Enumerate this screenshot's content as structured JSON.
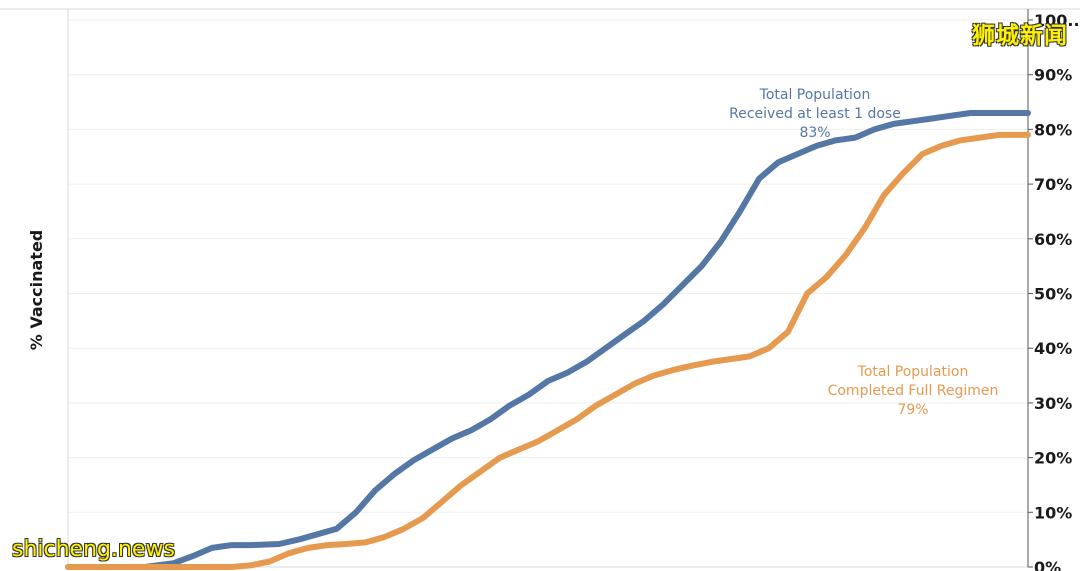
{
  "chart_data": {
    "type": "line",
    "xlabel": "",
    "ylabel": "% Vaccinated",
    "ylim": [
      0,
      100
    ],
    "yticks": [
      "0%",
      "10%",
      "20%",
      "30%",
      "40%",
      "50%",
      "60%",
      "70%",
      "80%",
      "90%",
      "100..."
    ],
    "y_axis_side": "right",
    "grid": true,
    "x_index_range": [
      0,
      100
    ],
    "series": [
      {
        "name": "Total Population Received at least 1 dose",
        "color": "#5577a5",
        "x": [
          0,
          8,
          11,
          13,
          15,
          17,
          19,
          22,
          24,
          26,
          28,
          30,
          32,
          34,
          36,
          38,
          40,
          42,
          44,
          46,
          48,
          50,
          52,
          54,
          56,
          58,
          60,
          62,
          64,
          66,
          68,
          70,
          72,
          74,
          76,
          78,
          80,
          82,
          84,
          86,
          88,
          90,
          92,
          94,
          96,
          98,
          100
        ],
        "values": [
          0,
          0,
          0.7,
          2,
          3.5,
          4,
          4,
          4.2,
          5,
          6,
          7,
          10,
          14,
          17,
          19.5,
          21.5,
          23.5,
          25,
          27,
          29.5,
          31.5,
          34,
          35.5,
          37.5,
          40,
          42.5,
          45,
          48,
          51.5,
          55,
          59.5,
          65,
          71,
          74,
          75.5,
          77,
          78,
          78.5,
          80,
          81,
          81.5,
          82,
          82.5,
          83,
          83,
          83,
          83
        ]
      },
      {
        "name": "Total Population Completed Full Regimen",
        "color": "#e69a4f",
        "x": [
          0,
          13,
          17,
          19,
          21,
          23,
          25,
          27,
          29,
          31,
          33,
          35,
          37,
          39,
          41,
          43,
          45,
          47,
          49,
          51,
          53,
          55,
          57,
          59,
          61,
          63,
          65,
          67,
          69,
          71,
          73,
          75,
          77,
          79,
          81,
          83,
          85,
          87,
          89,
          91,
          93,
          95,
          97,
          99,
          100
        ],
        "values": [
          0,
          0,
          0,
          0.3,
          1,
          2.5,
          3.5,
          4,
          4.2,
          4.5,
          5.5,
          7,
          9,
          12,
          15,
          17.5,
          20,
          21.5,
          23,
          25,
          27,
          29.5,
          31.5,
          33.5,
          35,
          36,
          36.8,
          37.5,
          38,
          38.5,
          40,
          43,
          50,
          53,
          57,
          62,
          68,
          72,
          75.5,
          77,
          78,
          78.5,
          79,
          79,
          79
        ]
      }
    ],
    "annotations": [
      {
        "series": 0,
        "lines": [
          "Total Population",
          "Received at least 1 dose",
          "83%"
        ]
      },
      {
        "series": 1,
        "lines": [
          "Total Population",
          "Completed Full Regimen",
          "79%"
        ]
      }
    ]
  },
  "watermarks": {
    "top_right": "狮城新闻",
    "bottom_left": "shicheng.news"
  }
}
